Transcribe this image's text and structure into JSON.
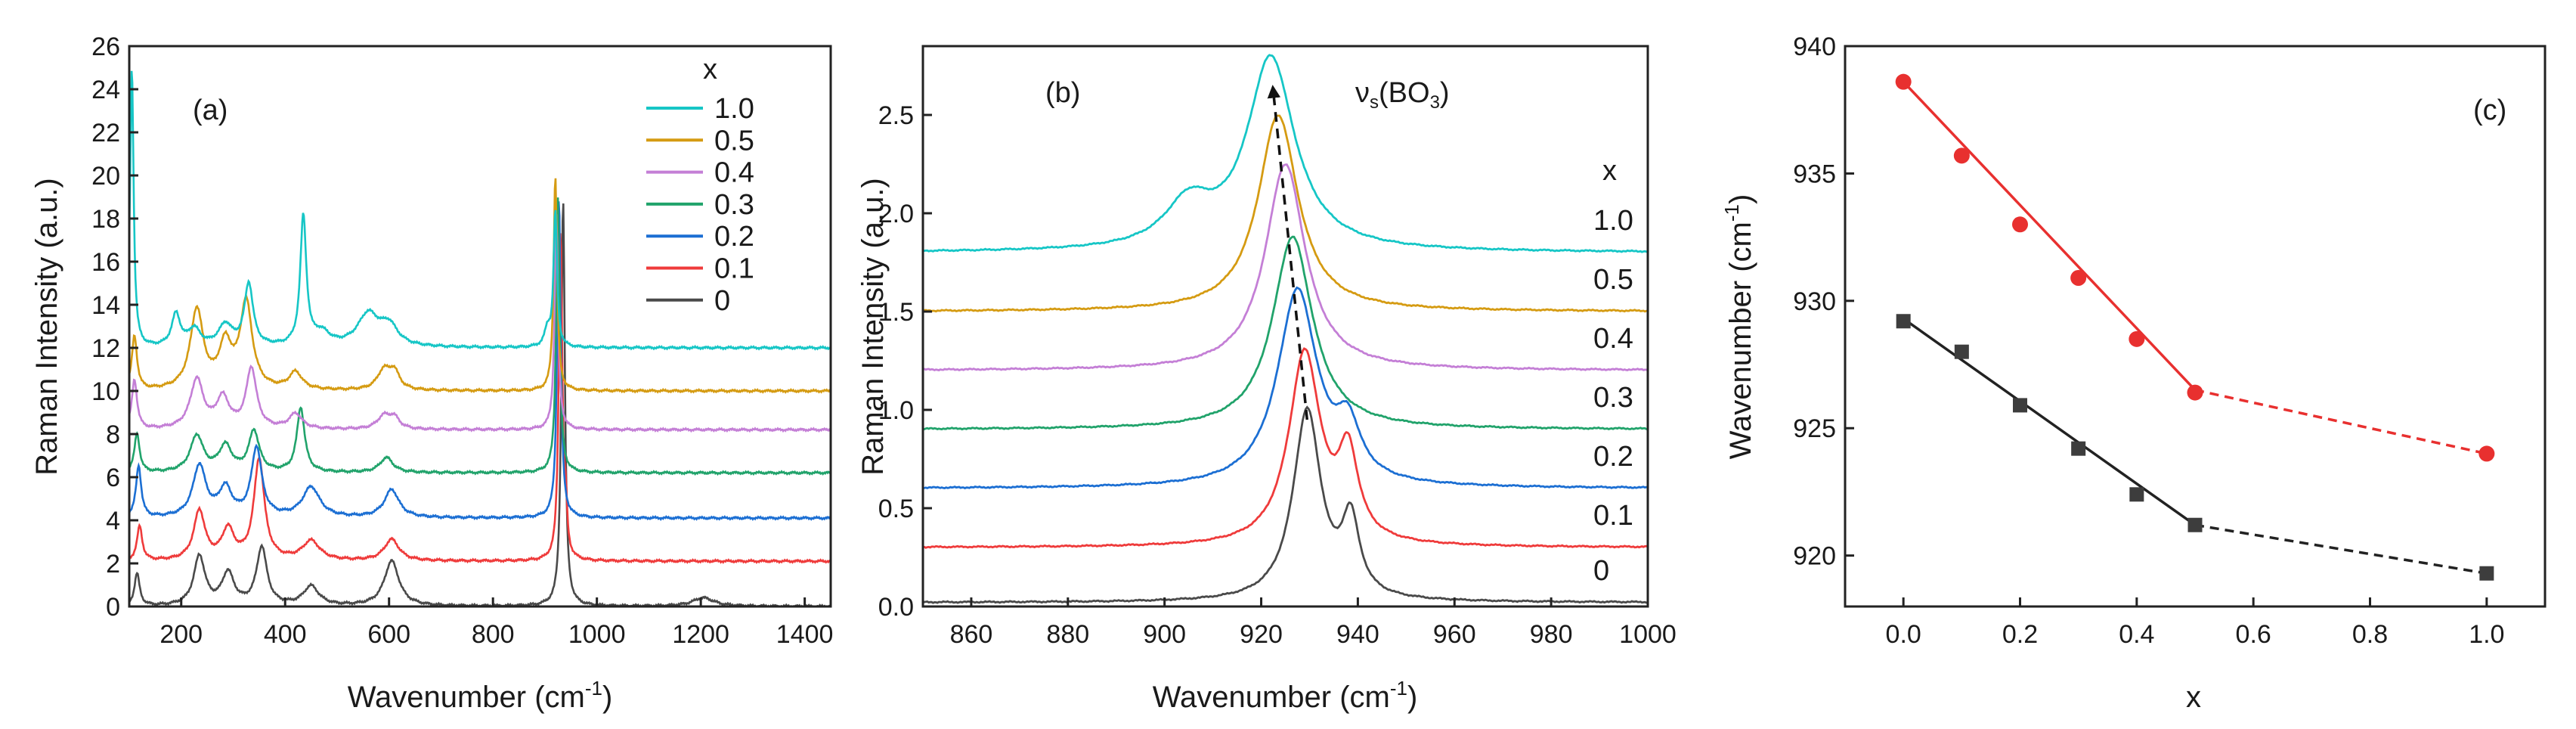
{
  "colors": {
    "x_1_0": "#16c6c6",
    "x_0_5": "#d59b12",
    "x_0_4": "#c47fd6",
    "x_0_3": "#21a36b",
    "x_0_2": "#1c6fd3",
    "x_0_1": "#ef3b3b",
    "x_0": "#4a4a4a",
    "fit_red": "#e8302f",
    "fit_black": "#222222"
  },
  "panels": {
    "a": {
      "label": "(a)",
      "xlabel": "Wavenumber (cm",
      "xlabel_sup": "-1",
      "xlabel_end": ")",
      "ylabel": "Raman Intensity (a.u.)",
      "legend_title": "x"
    },
    "b": {
      "label": "(b)",
      "xlabel": "Wavenumber (cm",
      "xlabel_sup": "-1",
      "xlabel_end": ")",
      "ylabel": "Raman Intensity (a.u.)",
      "legend_title": "x",
      "peak_label": "ν",
      "peak_sub": "s",
      "peak_paren": "(BO",
      "peak_sub2": "3",
      "peak_close": ")"
    },
    "c": {
      "label": "(c)",
      "xlabel": "x",
      "ylabel": "Wavenumber (cm",
      "ylabel_sup": "-1",
      "ylabel_end": ")"
    }
  },
  "chart_data": [
    {
      "type": "line",
      "panel": "a",
      "xlim": [
        100,
        1450
      ],
      "ylim": [
        0,
        26
      ],
      "xticks": [
        200,
        400,
        600,
        800,
        1000,
        1200,
        1400
      ],
      "yticks": [
        0,
        2,
        4,
        6,
        8,
        10,
        12,
        14,
        16,
        18,
        20,
        22,
        24,
        26
      ],
      "series": [
        {
          "name": "1.0",
          "color_key": "x_1_0",
          "baseline": 12.0,
          "peaks": [
            [
              105,
              13.0,
              4
            ],
            [
              190,
              1.5,
              10
            ],
            [
              225,
              0.8,
              14
            ],
            [
              285,
              1.0,
              16
            ],
            [
              330,
              2.9,
              10
            ],
            [
              435,
              6.0,
              7
            ],
            [
              470,
              0.6,
              20
            ],
            [
              560,
              1.5,
              25
            ],
            [
              600,
              0.9,
              20
            ],
            [
              905,
              0.8,
              7
            ],
            [
              920,
              6.3,
              4
            ]
          ]
        },
        {
          "name": "0.5",
          "color_key": "x_0_5",
          "baseline": 10.0,
          "peaks": [
            [
              110,
              2.5,
              6
            ],
            [
              230,
              3.7,
              15
            ],
            [
              285,
              2.0,
              15
            ],
            [
              325,
              4.0,
              14
            ],
            [
              420,
              0.8,
              15
            ],
            [
              590,
              0.9,
              15
            ],
            [
              610,
              0.8,
              12
            ],
            [
              920,
              10.0,
              4
            ]
          ]
        },
        {
          "name": "0.4",
          "color_key": "x_0_4",
          "baseline": 8.2,
          "peaks": [
            [
              110,
              2.3,
              6
            ],
            [
              230,
              2.3,
              15
            ],
            [
              280,
              1.4,
              15
            ],
            [
              335,
              2.8,
              12
            ],
            [
              420,
              0.7,
              15
            ],
            [
              590,
              0.6,
              15
            ],
            [
              610,
              0.5,
              12
            ],
            [
              922,
              10.0,
              4
            ]
          ]
        },
        {
          "name": "0.3",
          "color_key": "x_0_3",
          "baseline": 6.2,
          "peaks": [
            [
              115,
              1.8,
              6
            ],
            [
              230,
              1.7,
              15
            ],
            [
              285,
              1.2,
              15
            ],
            [
              340,
              1.9,
              12
            ],
            [
              430,
              3.0,
              9
            ],
            [
              595,
              0.7,
              15
            ],
            [
              925,
              12.8,
              4
            ]
          ]
        },
        {
          "name": "0.2",
          "color_key": "x_0_2",
          "baseline": 4.1,
          "peaks": [
            [
              118,
              2.4,
              6
            ],
            [
              235,
              2.4,
              15
            ],
            [
              285,
              1.3,
              15
            ],
            [
              345,
              3.2,
              12
            ],
            [
              450,
              1.4,
              20
            ],
            [
              605,
              1.3,
              17
            ],
            [
              927,
              14.9,
              4
            ]
          ]
        },
        {
          "name": "0.1",
          "color_key": "x_0_1",
          "baseline": 2.1,
          "peaks": [
            [
              120,
              1.6,
              6
            ],
            [
              235,
              2.3,
              13
            ],
            [
              290,
              1.4,
              14
            ],
            [
              350,
              4.7,
              12
            ],
            [
              450,
              0.9,
              20
            ],
            [
              605,
              1.0,
              17
            ],
            [
              930,
              15.3,
              4
            ],
            [
              940,
              2.0,
              3
            ]
          ]
        },
        {
          "name": "0",
          "color_key": "x_0",
          "baseline": 0.0,
          "peaks": [
            [
              115,
              1.5,
              6
            ],
            [
              235,
              2.3,
              13
            ],
            [
              290,
              1.5,
              14
            ],
            [
              355,
              2.7,
              12
            ],
            [
              450,
              0.9,
              18
            ],
            [
              605,
              2.1,
              17
            ],
            [
              935,
              19.0,
              4
            ],
            [
              1205,
              0.4,
              25
            ]
          ]
        }
      ]
    },
    {
      "type": "line",
      "panel": "b",
      "xlim": [
        850,
        1000
      ],
      "ylim": [
        0,
        2.85
      ],
      "xticks": [
        860,
        880,
        900,
        920,
        940,
        960,
        980,
        1000
      ],
      "yticks": [
        0.0,
        0.5,
        1.0,
        1.5,
        2.0,
        2.5
      ],
      "series": [
        {
          "name": "1.0",
          "color_key": "x_1_0",
          "baseline": 1.8,
          "peaks": [
            [
              922.0,
              0.98,
              6
            ],
            [
              905,
              0.22,
              6
            ]
          ]
        },
        {
          "name": "0.5",
          "color_key": "x_0_5",
          "baseline": 1.5,
          "peaks": [
            [
              923.5,
              1.0,
              5
            ]
          ]
        },
        {
          "name": "0.4",
          "color_key": "x_0_4",
          "baseline": 1.2,
          "peaks": [
            [
              925.0,
              1.05,
              5
            ]
          ]
        },
        {
          "name": "0.3",
          "color_key": "x_0_3",
          "baseline": 0.9,
          "peaks": [
            [
              926.5,
              0.98,
              5
            ]
          ]
        },
        {
          "name": "0.2",
          "color_key": "x_0_2",
          "baseline": 0.6,
          "peaks": [
            [
              927.5,
              1.0,
              5
            ],
            [
              938,
              0.25,
              3
            ]
          ]
        },
        {
          "name": "0.1",
          "color_key": "x_0_1",
          "baseline": 0.3,
          "peaks": [
            [
              929.0,
              0.98,
              4
            ],
            [
              938,
              0.42,
              2.5
            ]
          ]
        },
        {
          "name": "0",
          "color_key": "x_0",
          "baseline": 0.02,
          "peaks": [
            [
              929.5,
              0.97,
              3.5
            ],
            [
              938.5,
              0.38,
              2.2
            ]
          ]
        }
      ],
      "annotation_arrow": {
        "from": [
          929.5,
          0.95
        ],
        "to": [
          922.5,
          2.62
        ]
      }
    },
    {
      "type": "scatter",
      "panel": "c",
      "xlim": [
        -0.1,
        1.1
      ],
      "ylim": [
        918,
        940
      ],
      "xticks": [
        0.0,
        0.2,
        0.4,
        0.6,
        0.8,
        1.0
      ],
      "xtick_labels": [
        "0.0",
        "0.2",
        "0.4",
        "0.6",
        "0.8",
        "1.0"
      ],
      "yticks": [
        920,
        925,
        930,
        935,
        940
      ],
      "series": [
        {
          "name": "red circles",
          "color_key": "fit_red",
          "marker": "circle",
          "x": [
            0.0,
            0.1,
            0.2,
            0.3,
            0.4,
            0.5,
            1.0
          ],
          "y": [
            938.6,
            935.7,
            933.0,
            930.9,
            928.5,
            926.4,
            924.0
          ],
          "fit_solid": [
            [
              0.0,
              938.6
            ],
            [
              0.5,
              926.5
            ]
          ],
          "fit_dashed": [
            [
              0.5,
              926.5
            ],
            [
              1.0,
              924.0
            ]
          ]
        },
        {
          "name": "black squares",
          "color_key": "fit_black",
          "marker": "square",
          "x": [
            0.0,
            0.1,
            0.2,
            0.3,
            0.4,
            0.5,
            1.0
          ],
          "y": [
            929.2,
            928.0,
            925.9,
            924.2,
            922.4,
            921.2,
            919.3
          ],
          "fit_solid": [
            [
              0.0,
              929.3
            ],
            [
              0.5,
              921.2
            ]
          ],
          "fit_dashed": [
            [
              0.5,
              921.2
            ],
            [
              1.0,
              919.3
            ]
          ]
        }
      ]
    }
  ]
}
